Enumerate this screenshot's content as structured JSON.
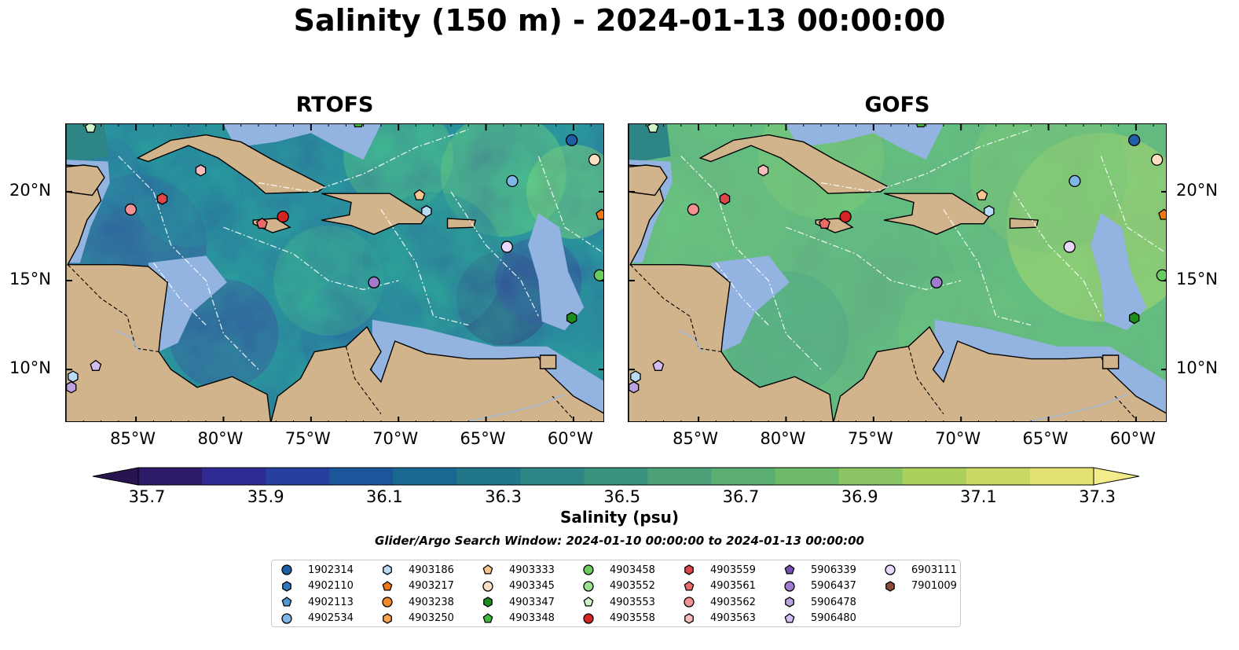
{
  "title": "Salinity (150 m) - 2024-01-13 00:00:00",
  "panels": [
    {
      "title": "RTOFS"
    },
    {
      "title": "GOFS"
    }
  ],
  "lon_ticks": [
    "85°W",
    "80°W",
    "75°W",
    "70°W",
    "65°W",
    "60°W"
  ],
  "lon_values": [
    -85,
    -80,
    -75,
    -70,
    -65,
    -60
  ],
  "lat_ticks": [
    "20°N",
    "15°N",
    "10°N"
  ],
  "lat_values": [
    20,
    15,
    10
  ],
  "map_extent": {
    "lon_min": -89,
    "lon_max": -58.2,
    "lat_min": 7,
    "lat_max": 23.8
  },
  "colorbar": {
    "ticks": [
      "35.7",
      "35.9",
      "36.1",
      "36.3",
      "36.5",
      "36.7",
      "36.9",
      "37.1",
      "37.3"
    ],
    "label": "Salinity (psu)",
    "colors": [
      "#2e1a6b",
      "#2f2a93",
      "#273f9f",
      "#1d559b",
      "#1a6791",
      "#227689",
      "#2d8585",
      "#3a937f",
      "#4da179",
      "#5aae72",
      "#6fba6a",
      "#8cc563",
      "#acd05c",
      "#c9d961",
      "#e3e270"
    ]
  },
  "search_window": "Glider/Argo Search Window: 2024-01-10 00:00:00 to 2024-01-13 00:00:00",
  "legend": [
    {
      "id": "1902314",
      "marker": "circle",
      "color": "#1f5fa6"
    },
    {
      "id": "4902110",
      "marker": "hexagon",
      "color": "#2c79c0"
    },
    {
      "id": "4902113",
      "marker": "pentagon",
      "color": "#4c9bd8"
    },
    {
      "id": "4902534",
      "marker": "circle",
      "color": "#7fb6e8"
    },
    {
      "id": "4903186",
      "marker": "hexagon",
      "color": "#b9dcf5"
    },
    {
      "id": "4903217",
      "marker": "pentagon",
      "color": "#f07a10"
    },
    {
      "id": "4903238",
      "marker": "circle",
      "color": "#f28a2a"
    },
    {
      "id": "4903250",
      "marker": "hexagon",
      "color": "#f8a44e"
    },
    {
      "id": "4903333",
      "marker": "pentagon",
      "color": "#fbc590"
    },
    {
      "id": "4903345",
      "marker": "circle",
      "color": "#fde0c2"
    },
    {
      "id": "4903347",
      "marker": "hexagon",
      "color": "#1c8c1c"
    },
    {
      "id": "4903348",
      "marker": "pentagon",
      "color": "#3fb83f"
    },
    {
      "id": "4903458",
      "marker": "circle",
      "color": "#6acc5f"
    },
    {
      "id": "4903552",
      "marker": "circle",
      "color": "#9be08f"
    },
    {
      "id": "4903553",
      "marker": "pentagon",
      "color": "#cff4c7"
    },
    {
      "id": "4903558",
      "marker": "circle",
      "color": "#d42424"
    },
    {
      "id": "4903559",
      "marker": "hexagon",
      "color": "#de4545"
    },
    {
      "id": "4903561",
      "marker": "pentagon",
      "color": "#ec6a6a"
    },
    {
      "id": "4903562",
      "marker": "circle",
      "color": "#f39292"
    },
    {
      "id": "4903563",
      "marker": "hexagon",
      "color": "#f8bcbc"
    },
    {
      "id": "5906339",
      "marker": "pentagon",
      "color": "#7a4fb1"
    },
    {
      "id": "5906437",
      "marker": "circle",
      "color": "#a07bd0"
    },
    {
      "id": "5906478",
      "marker": "hexagon",
      "color": "#bca0e0"
    },
    {
      "id": "5906480",
      "marker": "pentagon",
      "color": "#d4bcf0"
    },
    {
      "id": "6903111",
      "marker": "circle",
      "color": "#ead8fa"
    },
    {
      "id": "7901009",
      "marker": "hexagon",
      "color": "#8a4b3a"
    }
  ],
  "floats": [
    {
      "id": "1902314",
      "lon": -60.1,
      "lat": 22.9
    },
    {
      "id": "4903345",
      "lon": -58.8,
      "lat": 21.8
    },
    {
      "id": "4903217",
      "lon": -58.4,
      "lat": 18.7
    },
    {
      "id": "4902534",
      "lon": -63.5,
      "lat": 20.6
    },
    {
      "id": "4903333",
      "lon": -68.8,
      "lat": 19.8
    },
    {
      "id": "4903186",
      "lon": -68.4,
      "lat": 18.9
    },
    {
      "id": "6903111",
      "lon": -63.8,
      "lat": 16.9
    },
    {
      "id": "4903458",
      "lon": -58.5,
      "lat": 15.3
    },
    {
      "id": "4903347",
      "lon": -60.1,
      "lat": 12.9
    },
    {
      "id": "5906437",
      "lon": -71.4,
      "lat": 14.9
    },
    {
      "id": "4903558",
      "lon": -76.6,
      "lat": 18.6
    },
    {
      "id": "4903561",
      "lon": -77.8,
      "lat": 18.2
    },
    {
      "id": "4903559",
      "lon": -83.5,
      "lat": 19.6
    },
    {
      "id": "4903562",
      "lon": -85.3,
      "lat": 19.0
    },
    {
      "id": "4903563",
      "lon": -81.3,
      "lat": 21.2
    },
    {
      "id": "4903553",
      "lon": -87.6,
      "lat": 23.6
    },
    {
      "id": "4903348",
      "lon": -72.3,
      "lat": 23.9
    },
    {
      "id": "5906480",
      "lon": -87.3,
      "lat": 10.2
    },
    {
      "id": "4903186",
      "lon": -88.6,
      "lat": 9.6
    },
    {
      "id": "5906478",
      "lon": -88.7,
      "lat": 9.0
    }
  ]
}
